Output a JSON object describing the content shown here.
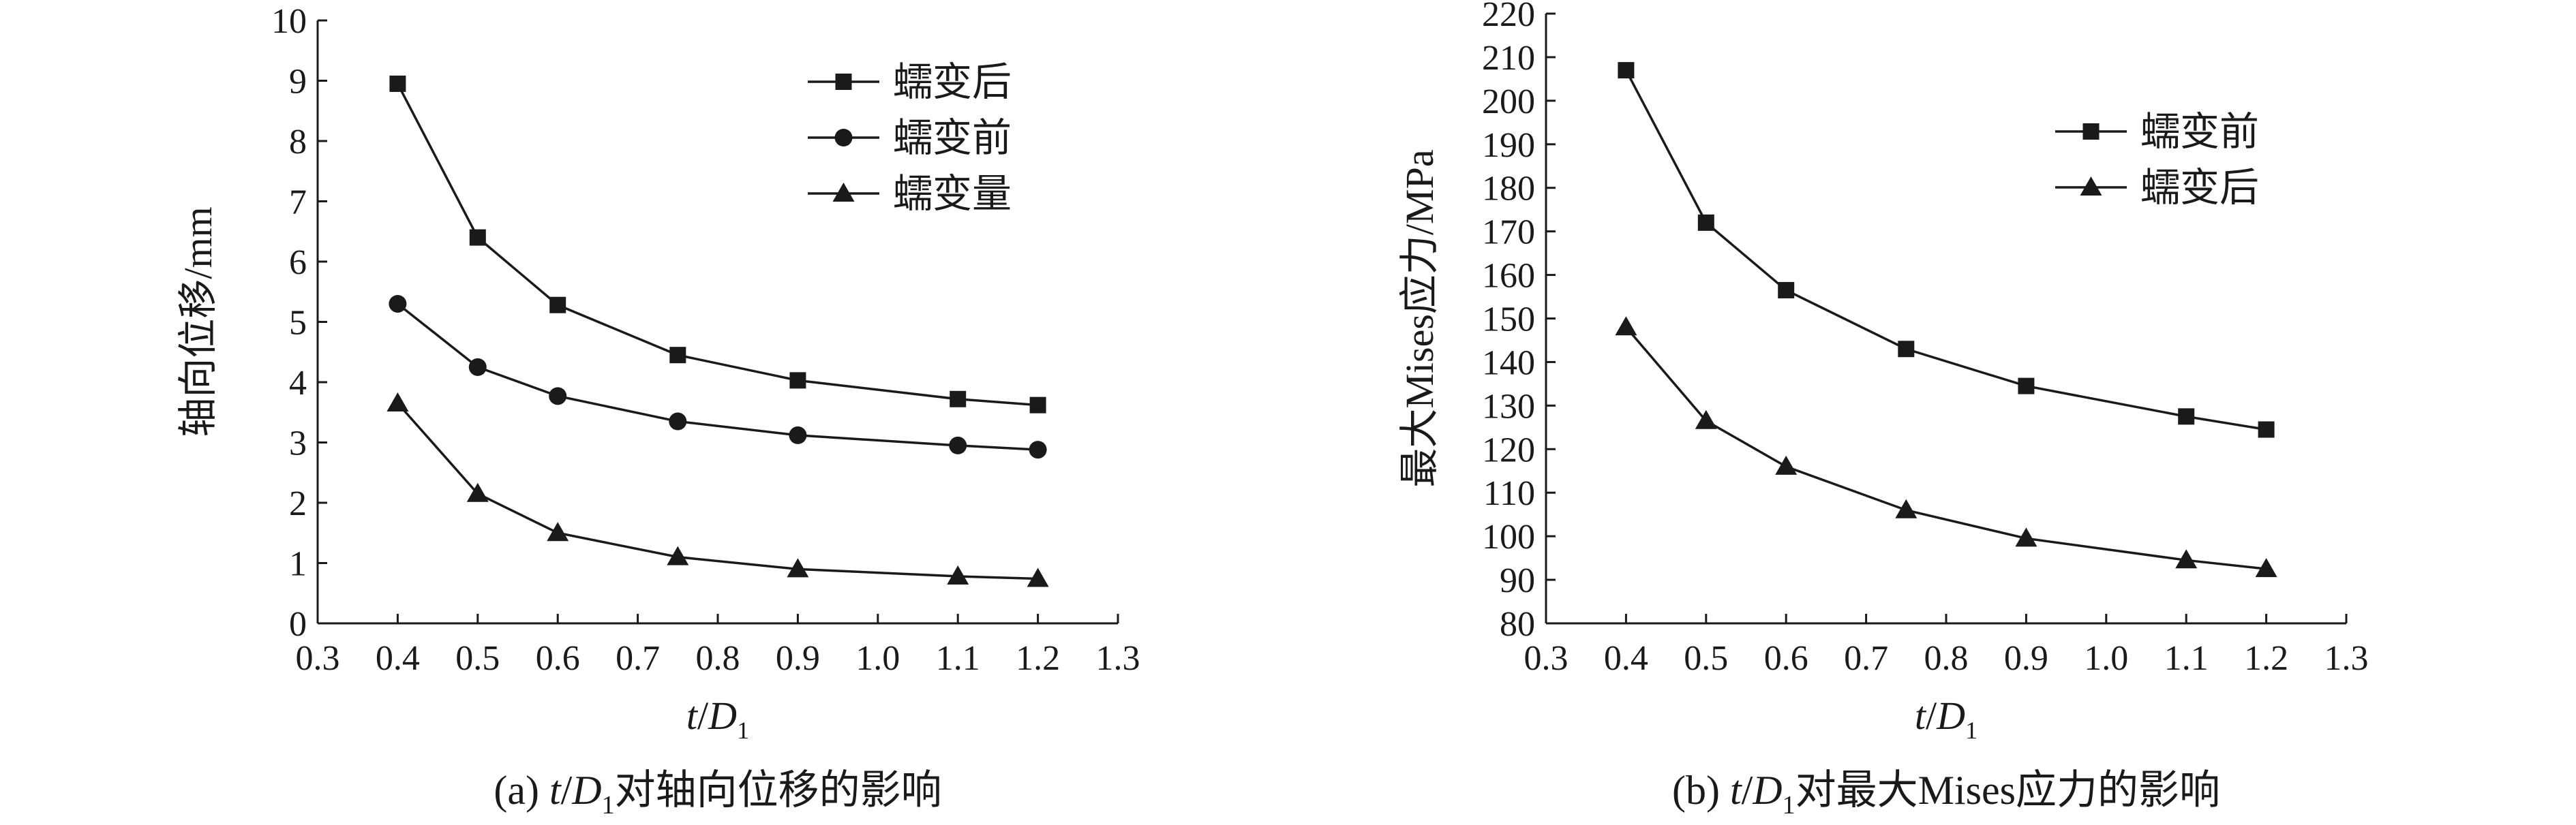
{
  "chart_data": [
    {
      "type": "line",
      "caption": {
        "prefix": "(a) ",
        "t": "t",
        "slash": "/",
        "D": "D",
        "sub": "1",
        "rest": "对轴向位移的影响"
      },
      "xlabel": {
        "t": "t",
        "slash": "/",
        "D": "D",
        "sub": "1"
      },
      "ylabel": "轴向位移/mm",
      "xlim": [
        0.3,
        1.3
      ],
      "ylim": [
        0,
        10
      ],
      "x_ticks": [
        "0.3",
        "0.4",
        "0.5",
        "0.6",
        "0.7",
        "0.8",
        "0.9",
        "1.0",
        "1.1",
        "1.2",
        "1.3"
      ],
      "y_ticks": [
        "0",
        "1",
        "2",
        "3",
        "4",
        "5",
        "6",
        "7",
        "8",
        "9",
        "10"
      ],
      "x": [
        0.4,
        0.5,
        0.6,
        0.75,
        0.9,
        1.1,
        1.2
      ],
      "series": [
        {
          "name": "蠕变后",
          "marker": "square",
          "values": [
            8.95,
            6.4,
            5.28,
            4.45,
            4.03,
            3.72,
            3.62
          ]
        },
        {
          "name": "蠕变前",
          "marker": "circle",
          "values": [
            5.3,
            4.25,
            3.77,
            3.35,
            3.12,
            2.95,
            2.88
          ]
        },
        {
          "name": "蠕变量",
          "marker": "triangle",
          "values": [
            3.65,
            2.15,
            1.5,
            1.1,
            0.9,
            0.78,
            0.74
          ]
        }
      ],
      "legend_position": "top-right",
      "grid": false
    },
    {
      "type": "line",
      "caption": {
        "prefix": "(b) ",
        "t": "t",
        "slash": "/",
        "D": "D",
        "sub": "1",
        "rest": "对最大Mises应力的影响"
      },
      "xlabel": {
        "t": "t",
        "slash": "/",
        "D": "D",
        "sub": "1"
      },
      "ylabel": "最大Mises应力/MPa",
      "xlim": [
        0.3,
        1.3
      ],
      "ylim": [
        80,
        220
      ],
      "x_ticks": [
        "0.3",
        "0.4",
        "0.5",
        "0.6",
        "0.7",
        "0.8",
        "0.9",
        "1.0",
        "1.1",
        "1.2",
        "1.3"
      ],
      "y_ticks": [
        "80",
        "90",
        "100",
        "110",
        "120",
        "130",
        "140",
        "150",
        "160",
        "170",
        "180",
        "190",
        "200",
        "210",
        "220"
      ],
      "x": [
        0.4,
        0.5,
        0.6,
        0.75,
        0.9,
        1.1,
        1.2
      ],
      "series": [
        {
          "name": "蠕变前",
          "marker": "square",
          "values": [
            207,
            172,
            156.5,
            143,
            134.5,
            127.5,
            124.5
          ]
        },
        {
          "name": "蠕变后",
          "marker": "triangle",
          "values": [
            148,
            126.5,
            116,
            106,
            99.5,
            94.5,
            92.5
          ]
        }
      ],
      "legend_position": "top-right",
      "grid": false
    }
  ]
}
